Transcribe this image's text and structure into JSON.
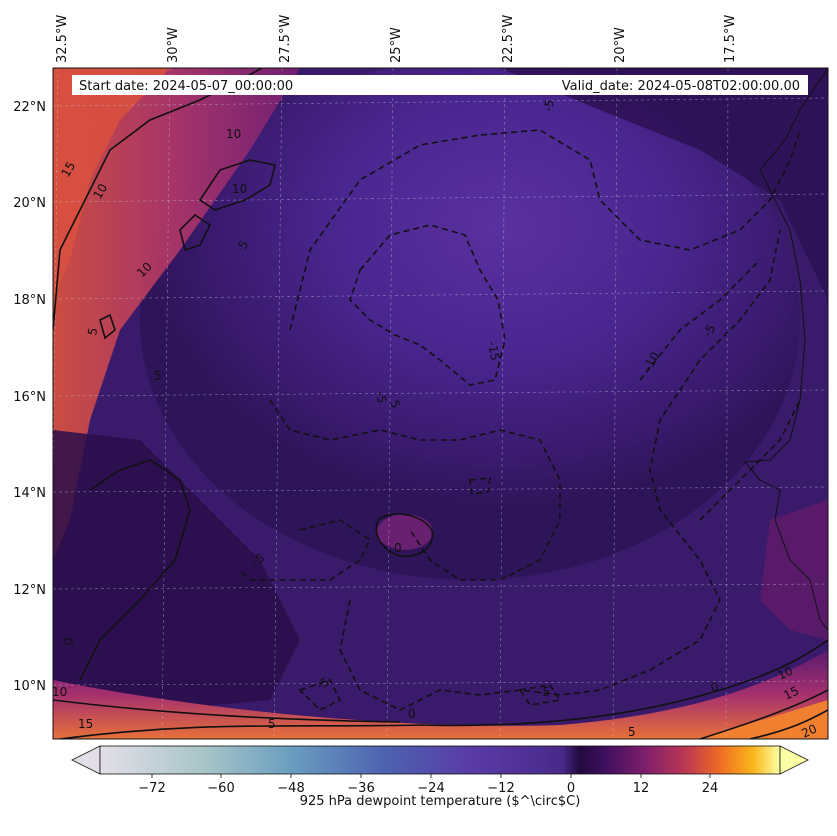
{
  "header": {
    "start_date": "Start date: 2024-05-07_00:00:00",
    "valid_date": "Valid_date: 2024-05-08T02:00:00.00"
  },
  "longitude_labels": [
    "32.5°W",
    "30°W",
    "27.5°W",
    "25°W",
    "22.5°W",
    "20°W",
    "17.5°W"
  ],
  "latitude_labels": [
    "22°N",
    "20°N",
    "18°N",
    "16°N",
    "14°N",
    "12°N",
    "10°N"
  ],
  "contour_labels": [
    "15",
    "10",
    "10",
    "10",
    "10",
    "5",
    "5",
    "5",
    "-15",
    "-10",
    "-5",
    "-5",
    "-5",
    "-5",
    "0",
    "0",
    "0",
    "0",
    "5",
    "10",
    "15",
    "20",
    "15",
    "10",
    "5",
    "-5",
    "-5",
    "5"
  ],
  "colorbar": {
    "label": "925 hPa dewpoint temperature ($^\\circ$C)",
    "ticks": [
      "−72",
      "−60",
      "−48",
      "−36",
      "−24",
      "−12",
      "0",
      "12",
      "24"
    ],
    "colors": {
      "low": "#e0dce6",
      "mid": "#5b3aa0",
      "zero": "#2a0e4a",
      "high": "#fcffa4",
      "warm": "#e45a31"
    }
  }
}
